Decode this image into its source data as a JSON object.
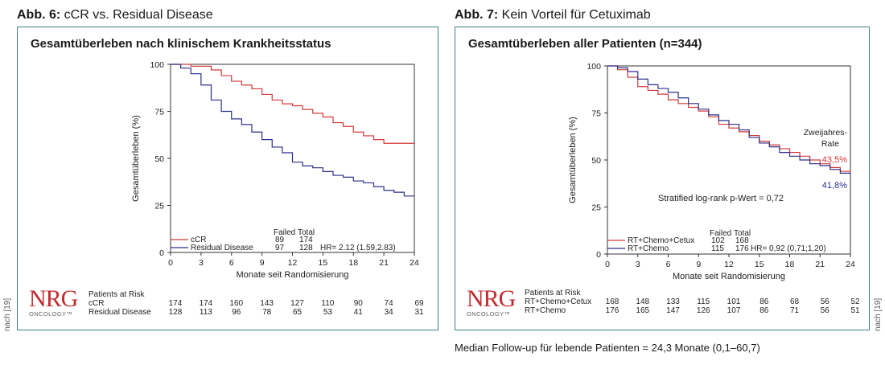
{
  "fig6": {
    "heading_bold": "Abb. 6:",
    "heading_text": "cCR vs. Residual Disease",
    "panel_title": "Gesamtüberleben nach klinischem Krankheitsstatus"
  },
  "fig7": {
    "heading_bold": "Abb. 7:",
    "heading_text": "Kein Vorteil für Cetuximab",
    "panel_title": "Gesamtüberleben aller Patienten (n=344)"
  },
  "logo": {
    "brand": "NRG",
    "sub": "ONCOLOGY™"
  },
  "side_note": "nach [19]",
  "footnote": "Median Follow-up für lebende Patienten = 24,3 Monate (0,1–60,7)",
  "colors": {
    "red": "#d23a3a",
    "blue": "#2e2e8e",
    "teal": "#3f7d86"
  },
  "chart_data": [
    {
      "type": "line",
      "title": "Gesamtüberleben nach klinischem Krankheitsstatus",
      "xlabel": "Monate seit Randomisierung",
      "ylabel": "Gesamtüberleben (%)",
      "xlim": [
        0,
        24
      ],
      "ylim": [
        0,
        100
      ],
      "xticks": [
        "0",
        "3",
        "6",
        "9",
        "12",
        "15",
        "18",
        "21",
        "24"
      ],
      "yticks": [
        "0",
        "25",
        "50",
        "75",
        "100"
      ],
      "series": [
        {
          "name": "cCR",
          "color": "#d23a3a",
          "failed": "89",
          "total": "174",
          "x": [
            0,
            1,
            2,
            3,
            4,
            5,
            6,
            7,
            8,
            9,
            10,
            11,
            12,
            13,
            14,
            15,
            16,
            17,
            18,
            19,
            20,
            21,
            22,
            23,
            24
          ],
          "y": [
            100,
            100,
            99,
            99,
            97,
            94,
            91,
            89,
            87,
            84,
            81,
            79,
            78,
            76,
            74,
            72,
            69,
            67,
            64,
            62,
            60,
            58,
            58,
            58,
            58
          ]
        },
        {
          "name": "Residual Disease",
          "color": "#2e2e8e",
          "failed": "97",
          "total": "128",
          "x": [
            0,
            1,
            2,
            3,
            4,
            5,
            6,
            7,
            8,
            9,
            10,
            11,
            12,
            13,
            14,
            15,
            16,
            17,
            18,
            19,
            20,
            21,
            22,
            23,
            24
          ],
          "y": [
            100,
            98,
            95,
            89,
            81,
            75,
            71,
            68,
            64,
            60,
            56,
            53,
            48,
            46,
            45,
            43,
            41,
            40,
            38,
            37,
            35,
            33,
            32,
            30,
            30
          ]
        }
      ],
      "legend_header": [
        "Failed",
        "Total"
      ],
      "hr_text": "HR= 2.12 (1.59,2.83)",
      "risk_table": {
        "header": "Patients at Risk",
        "rows": [
          {
            "label": "cCR",
            "values": [
              "174",
              "174",
              "160",
              "143",
              "127",
              "110",
              "90",
              "74",
              "69"
            ]
          },
          {
            "label": "Residual Disease",
            "values": [
              "128",
              "113",
              "96",
              "78",
              "65",
              "53",
              "41",
              "34",
              "31"
            ]
          }
        ]
      }
    },
    {
      "type": "line",
      "title": "Gesamtüberleben aller Patienten (n=344)",
      "xlabel": "Monate seit Randomisierung",
      "ylabel": "Gesamtüberleben (%)",
      "xlim": [
        0,
        24
      ],
      "ylim": [
        0,
        100
      ],
      "xticks": [
        "0",
        "3",
        "6",
        "9",
        "12",
        "15",
        "18",
        "21",
        "24"
      ],
      "yticks": [
        "0",
        "25",
        "50",
        "75",
        "100"
      ],
      "series": [
        {
          "name": "RT+Chemo+Cetux",
          "color": "#d23a3a",
          "failed": "102",
          "total": "168",
          "x": [
            0,
            1,
            2,
            3,
            4,
            5,
            6,
            7,
            8,
            9,
            10,
            11,
            12,
            13,
            14,
            15,
            16,
            17,
            18,
            19,
            20,
            21,
            22,
            23,
            24
          ],
          "y": [
            100,
            98,
            94,
            89,
            87,
            85,
            82,
            80,
            78,
            76,
            73,
            69,
            67,
            65,
            63,
            60,
            58,
            56,
            54,
            52,
            50,
            48,
            46,
            44,
            43.5
          ]
        },
        {
          "name": "RT+Chemo",
          "color": "#2e2e8e",
          "failed": "115",
          "total": "176",
          "x": [
            0,
            1,
            2,
            3,
            4,
            5,
            6,
            7,
            8,
            9,
            10,
            11,
            12,
            13,
            14,
            15,
            16,
            17,
            18,
            19,
            20,
            21,
            22,
            23,
            24
          ],
          "y": [
            100,
            99,
            97,
            93,
            90,
            88,
            86,
            83,
            80,
            77,
            74,
            71,
            69,
            66,
            62,
            59,
            57,
            54,
            52,
            50,
            48,
            47,
            45,
            43,
            41.8
          ]
        }
      ],
      "legend_header": [
        "Failed",
        "Total"
      ],
      "hr_text": "HR= 0,92 (0,71;1,20)",
      "annotations": {
        "rate_title_1": "Zweijahres-",
        "rate_title_2": "Rate",
        "rate_red": "43,5%",
        "rate_blue": "41,8%",
        "logrank": "Stratified log-rank p-Wert = 0,72"
      },
      "risk_table": {
        "header": "Patients at Risk",
        "rows": [
          {
            "label": "RT+Chemo+Cetux",
            "values": [
              "168",
              "148",
              "133",
              "115",
              "101",
              "86",
              "68",
              "56",
              "52"
            ]
          },
          {
            "label": "RT+Chemo",
            "values": [
              "176",
              "165",
              "147",
              "126",
              "107",
              "86",
              "71",
              "56",
              "51"
            ]
          }
        ]
      }
    }
  ]
}
